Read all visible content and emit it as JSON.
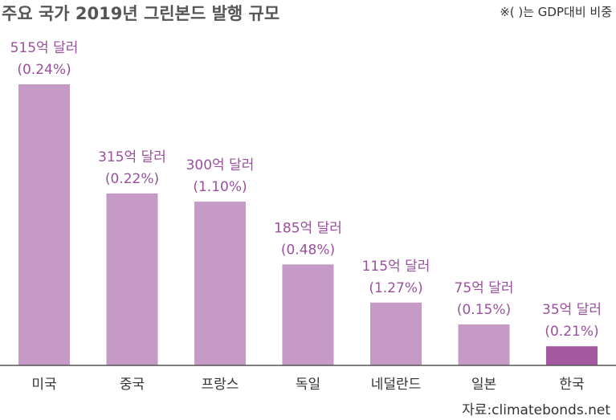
{
  "title": "주요 국가 2019년 그린본드 발행 규모",
  "note": "※(   )는 GDP대비 비중",
  "source": "자료:climatebonds.net",
  "colors": {
    "bar": "#c69ac6",
    "highlight": "#a4589f",
    "label": "#9a4f9e",
    "baseline": "#555555"
  },
  "chart_data": {
    "type": "bar",
    "title": "주요 국가 2019년 그린본드 발행 규모",
    "xlabel": "",
    "ylabel": "",
    "ylim": [
      0,
      515
    ],
    "grid": false,
    "categories": [
      "미국",
      "중국",
      "프랑스",
      "독일",
      "네덜란드",
      "일본",
      "한국"
    ],
    "values": [
      515,
      315,
      300,
      185,
      115,
      75,
      35
    ],
    "value_labels": [
      "515억 달러",
      "315억 달러",
      "300억 달러",
      "185억 달러",
      "115억 달러",
      "75억 달러",
      "35억 달러"
    ],
    "gdp_share_labels": [
      "(0.24%)",
      "(0.22%)",
      "(1.10%)",
      "(0.48%)",
      "(1.27%)",
      "(0.15%)",
      "(0.21%)"
    ],
    "highlighted_category": "한국"
  }
}
